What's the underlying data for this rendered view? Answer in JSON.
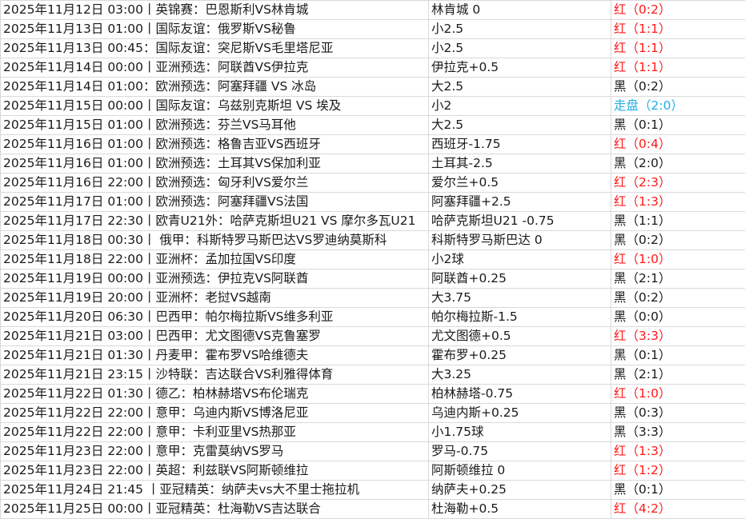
{
  "colors": {
    "red": "#ff1a1a",
    "black": "#1a1a1a",
    "push": "#22aee8",
    "grid": "#d9d9d9"
  },
  "rows": [
    {
      "match": "2025年11月12日 03:00丨英锦赛：巴恩斯利VS林肯城",
      "pick": "林肯城 0",
      "result": "红（0:2）",
      "status": "red"
    },
    {
      "match": "2025年11月13日 01:00丨国际友谊：俄罗斯VS秘鲁",
      "pick": "小2.5",
      "result": "红（1:1）",
      "status": "red"
    },
    {
      "match": "2025年11月13日 00:45：国际友谊：突尼斯VS毛里塔尼亚",
      "pick": "小2.5",
      "result": "红（1:1）",
      "status": "red"
    },
    {
      "match": "2025年11月14日 00:00丨亚洲预选：阿联酋VS伊拉克",
      "pick": "伊拉克+0.5",
      "result": "红（1:1）",
      "status": "red"
    },
    {
      "match": "2025年11月14日 01:00：欧洲预选：阿塞拜疆 VS 冰岛",
      "pick": "大2.5",
      "result": "黑（0:2）",
      "status": "black"
    },
    {
      "match": "2025年11月15日 00:00丨国际友谊：乌兹别克斯坦 VS 埃及",
      "pick": "小2",
      "result": "走盘（2:0）",
      "status": "push"
    },
    {
      "match": "2025年11月15日 01:00丨欧洲预选：芬兰VS马耳他",
      "pick": "大2.5",
      "result": "黑（0:1）",
      "status": "black"
    },
    {
      "match": "2025年11月16日 01:00丨欧洲预选：格鲁吉亚VS西班牙",
      "pick": "西班牙-1.75",
      "result": "红（0:4）",
      "status": "red"
    },
    {
      "match": "2025年11月16日 01:00丨欧洲预选：土耳其VS保加利亚",
      "pick": "土耳其-2.5",
      "result": "黑（2:0）",
      "status": "black"
    },
    {
      "match": "2025年11月16日 22:00丨欧洲预选：匈牙利VS爱尔兰",
      "pick": "爱尔兰+0.5",
      "result": "红（2:3）",
      "status": "red"
    },
    {
      "match": "2025年11月17日 01:00丨欧洲预选：阿塞拜疆VS法国",
      "pick": "阿塞拜疆+2.5",
      "result": "红（1:3）",
      "status": "red"
    },
    {
      "match": "2025年11月17日 22:30丨欧青U21外：哈萨克斯坦U21 VS 摩尔多瓦U21",
      "pick": "哈萨克斯坦U21 -0.75",
      "result": "黑（1:1）",
      "status": "black"
    },
    {
      "match": "2025年11月18日 00:30丨 俄甲：科斯特罗马斯巴达VS罗迪纳莫斯科",
      "pick": "科斯特罗马斯巴达 0",
      "result": "黑（0:2）",
      "status": "black"
    },
    {
      "match": "2025年11月18日 22:00丨亚洲杯：孟加拉国VS印度",
      "pick": "小2球",
      "result": "红（1:0）",
      "status": "red"
    },
    {
      "match": "2025年11月19日 00:00丨亚洲预选：伊拉克VS阿联酋",
      "pick": "阿联酋+0.25",
      "result": "黑（2:1）",
      "status": "black"
    },
    {
      "match": "2025年11月19日 20:00丨亚洲杯：老挝VS越南",
      "pick": "大3.75",
      "result": "黑（0:2）",
      "status": "black"
    },
    {
      "match": "2025年11月20日 06:30丨巴西甲：帕尔梅拉斯VS维多利亚",
      "pick": "帕尔梅拉斯-1.5",
      "result": "黑（0:0）",
      "status": "black"
    },
    {
      "match": "2025年11月21日 03:00丨巴西甲：尤文图德VS克鲁塞罗",
      "pick": "尤文图德+0.5",
      "result": "红（3:3）",
      "status": "red"
    },
    {
      "match": "2025年11月21日 01:30丨丹麦甲：霍布罗VS哈维德夫",
      "pick": "霍布罗+0.25",
      "result": "黑（0:1）",
      "status": "black"
    },
    {
      "match": "2025年11月21日 23:15丨沙特联：吉达联合VS利雅得体育",
      "pick": "大3.25",
      "result": "黑（2:1）",
      "status": "black"
    },
    {
      "match": "2025年11月22日 01:30丨德乙：柏林赫塔VS布伦瑞克",
      "pick": "柏林赫塔-0.75",
      "result": "红（1:0）",
      "status": "red"
    },
    {
      "match": "2025年11月22日 22:00丨意甲：乌迪内斯VS博洛尼亚",
      "pick": "乌迪内斯+0.25",
      "result": "黑（0:3）",
      "status": "black"
    },
    {
      "match": "2025年11月22日 22:00丨意甲：卡利亚里VS热那亚",
      "pick": "小1.75球",
      "result": "黑（3:3）",
      "status": "black"
    },
    {
      "match": "2025年11月23日 22:00丨意甲：克雷莫纳VS罗马",
      "pick": "罗马-0.75",
      "result": "红（1:3）",
      "status": "red"
    },
    {
      "match": "2025年11月23日 22:00丨英超：利兹联VS阿斯顿维拉",
      "pick": "阿斯顿维拉 0",
      "result": "红（1:2）",
      "status": "red"
    },
    {
      "match": "2025年11月24日 21:45 丨亚冠精英：纳萨夫vs大不里士拖拉机",
      "pick": "纳萨夫+0.25",
      "result": "黑（0:1）",
      "status": "black"
    },
    {
      "match": "2025年11月25日 00:00丨亚冠精英：杜海勒VS吉达联合",
      "pick": "杜海勒+0.5",
      "result": "红（4:2）",
      "status": "red"
    }
  ]
}
